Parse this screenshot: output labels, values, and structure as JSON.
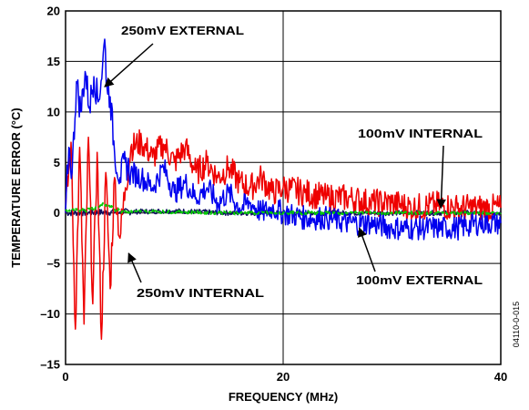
{
  "chart_data": {
    "type": "line",
    "xlabel": "FREQUENCY (MHz)",
    "ylabel": "TEMPERATURE ERROR (°C)",
    "xlim": [
      0,
      40
    ],
    "ylim": [
      -15,
      20
    ],
    "x_ticks": [
      0,
      20,
      40
    ],
    "y_ticks": [
      -15,
      -10,
      -5,
      0,
      5,
      10,
      15,
      20
    ],
    "grid": true,
    "figure_id": "04110-0-015",
    "annotations": [
      {
        "text": "250mV EXTERNAL",
        "points_to": [
          3.6,
          12.5
        ]
      },
      {
        "text": "100mV INTERNAL",
        "points_to": [
          34.5,
          0.5
        ]
      },
      {
        "text": "250mV INTERNAL",
        "points_to": [
          5.8,
          -4.0
        ]
      },
      {
        "text": "100mV EXTERNAL",
        "points_to": [
          27.0,
          -1.5
        ]
      }
    ],
    "series": [
      {
        "name": "250mV EXTERNAL",
        "color": "#0000ee",
        "x": [
          0,
          0.3,
          0.6,
          1.0,
          1.4,
          1.8,
          2.2,
          2.6,
          3.0,
          3.4,
          3.6,
          3.8,
          4.1,
          4.5,
          5.0,
          5.5,
          6.0,
          7.0,
          8.0,
          9.0,
          10,
          11,
          12,
          13,
          14,
          15,
          16,
          17,
          18,
          19,
          20,
          22,
          24,
          26,
          28,
          30,
          32,
          34,
          36,
          38,
          40
        ],
        "y": [
          0,
          6.5,
          4.0,
          13.0,
          10.0,
          14.0,
          10.5,
          13.5,
          11.0,
          14.5,
          17.2,
          12.5,
          11.5,
          6.0,
          3.5,
          5.0,
          4.0,
          3.5,
          2.5,
          4.5,
          2.0,
          3.0,
          1.5,
          2.5,
          1.0,
          2.0,
          0.5,
          1.0,
          0.0,
          0.5,
          0.0,
          -0.5,
          -0.5,
          -1.0,
          -1.0,
          -1.5,
          -1.5,
          -1.5,
          -1.5,
          -1.0,
          -1.0
        ]
      },
      {
        "name": "250mV INTERNAL",
        "color": "#ee0000",
        "x": [
          0,
          0.5,
          0.9,
          1.3,
          1.7,
          2.1,
          2.5,
          2.9,
          3.3,
          3.7,
          4.1,
          4.5,
          5.0,
          5.5,
          6.0,
          7.0,
          8.0,
          9.0,
          10,
          11,
          12,
          13,
          14,
          15,
          16,
          17,
          18,
          19,
          20,
          22,
          24,
          26,
          28,
          30,
          32,
          34,
          36,
          38,
          40
        ],
        "y": [
          0,
          7.0,
          -11.5,
          6.5,
          -11.0,
          7.5,
          -9.0,
          6.0,
          -12.5,
          4.0,
          -7.5,
          3.5,
          -2.5,
          2.5,
          6.5,
          7.0,
          5.5,
          6.8,
          5.0,
          6.5,
          4.0,
          5.0,
          3.5,
          4.5,
          3.0,
          2.5,
          3.5,
          2.0,
          2.5,
          2.0,
          1.5,
          1.5,
          1.0,
          1.0,
          0.5,
          0.8,
          0.5,
          0.5,
          0.5
        ]
      },
      {
        "name": "100mV INTERNAL",
        "color": "#00cc00",
        "x": [
          0,
          2,
          3.5,
          5,
          10,
          15,
          20,
          25,
          30,
          35,
          40
        ],
        "y": [
          0.2,
          0.3,
          0.8,
          0.2,
          0.1,
          0.0,
          0.0,
          0.0,
          0.0,
          0.0,
          0.0
        ]
      },
      {
        "name": "100mV EXTERNAL",
        "color": "#101060",
        "x": [
          0,
          5,
          10,
          15,
          20,
          25,
          30,
          35,
          40
        ],
        "y": [
          0.0,
          0.1,
          0.2,
          0.0,
          0.0,
          0.0,
          0.0,
          0.0,
          0.0
        ]
      }
    ]
  }
}
